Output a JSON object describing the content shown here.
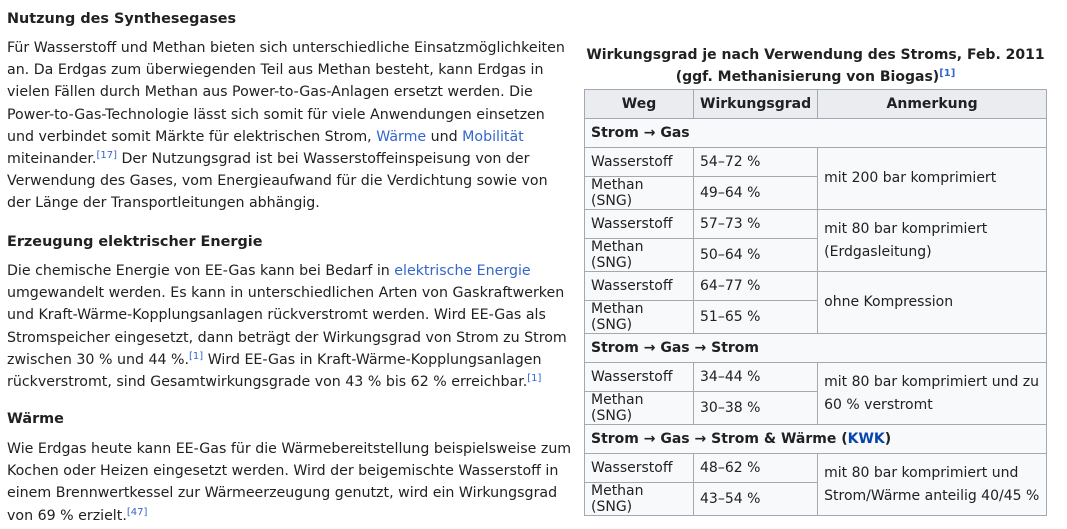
{
  "sections": [
    {
      "heading": "Nutzung des Synthesegases",
      "para_1": "Für Wasserstoff und Methan bieten sich unterschiedliche Einsatzmöglichkeiten an. Da Erdgas zum überwiegenden Teil aus Methan besteht, kann Erdgas in vielen Fällen durch Methan aus Power-to-Gas-Anlagen ersetzt werden. Die Power-to-Gas-Technologie lässt sich somit für viele Anwendungen einsetzen und verbindet somit Märkte für elektrischen Strom, ",
      "link_1": "Wärme",
      "and": " und ",
      "link_2": "Mobilität",
      "para_2": " miteinander.",
      "ref_1": "[17]",
      "para_3": " Der Nutzungsgrad ist bei Wasserstoffeinspeisung von der Verwendung des Gases, vom Energieaufwand für die Verdichtung sowie von der Länge der Transportleitungen abhängig."
    },
    {
      "heading": "Erzeugung elektrischer Energie",
      "para_1": "Die chemische Energie von EE-Gas kann bei Bedarf in ",
      "link_1": "elektrische Energie",
      "para_2": " umgewandelt werden. Es kann in unterschiedlichen Arten von Gaskraftwerken und Kraft-Wärme-Kopplungsanlagen rückverstromt werden. Wird EE-Gas als Stromspeicher eingesetzt, dann beträgt der Wirkungsgrad von Strom zu Strom zwischen 30 % und 44 %.",
      "ref_1": "[1]",
      "para_3": " Wird EE-Gas in Kraft-Wärme-Kopplungsanlagen rückverstromt, sind Gesamtwirkungsgrade von 43 % bis 62 % erreichbar.",
      "ref_2": "[1]"
    },
    {
      "heading": "Wärme",
      "para_1": "Wie Erdgas heute kann EE-Gas für die Wärmebereitstellung beispielsweise zum Kochen oder Heizen eingesetzt werden. Wird der beigemischte Wasserstoff in einem Brennwertkessel zur Wärmeerzeugung genutzt, wird ein Wirkungsgrad von 69 % erzielt.",
      "ref_1": "[47]"
    }
  ],
  "table": {
    "caption": "Wirkungsgrad je nach Verwendung des Stroms, Feb. 2011 (ggf. Methanisierung von Biogas)",
    "caption_ref": "[1]",
    "headers": [
      "Weg",
      "Wirkungsgrad",
      "Anmerkung"
    ],
    "group_1": "Strom → Gas",
    "group_2": "Strom → Gas → Strom",
    "group_3_text": "Strom → Gas → Strom & Wärme (",
    "group_3_link": "KWK",
    "group_3_end": ")",
    "rows": [
      {
        "weg": "Wasserstoff",
        "wg": "54–72 %"
      },
      {
        "weg": "Methan (SNG)",
        "wg": "49–64 %"
      },
      {
        "weg": "Wasserstoff",
        "wg": "57–73 %"
      },
      {
        "weg": "Methan (SNG)",
        "wg": "50–64 %"
      },
      {
        "weg": "Wasserstoff",
        "wg": "64–77 %"
      },
      {
        "weg": "Methan (SNG)",
        "wg": "51–65 %"
      },
      {
        "weg": "Wasserstoff",
        "wg": "34–44 %"
      },
      {
        "weg": "Methan (SNG)",
        "wg": "30–38 %"
      },
      {
        "weg": "Wasserstoff",
        "wg": "48–62 %"
      },
      {
        "weg": "Methan (SNG)",
        "wg": "43–54 %"
      }
    ],
    "notes": [
      "mit 200 bar komprimiert",
      "mit 80 bar komprimiert (Erdgasleitung)",
      "ohne Kompression",
      "mit 80 bar komprimiert und zu 60 % verstromt",
      "mit 80 bar komprimiert und Strom/Wärme anteilig 40/45 %"
    ]
  }
}
